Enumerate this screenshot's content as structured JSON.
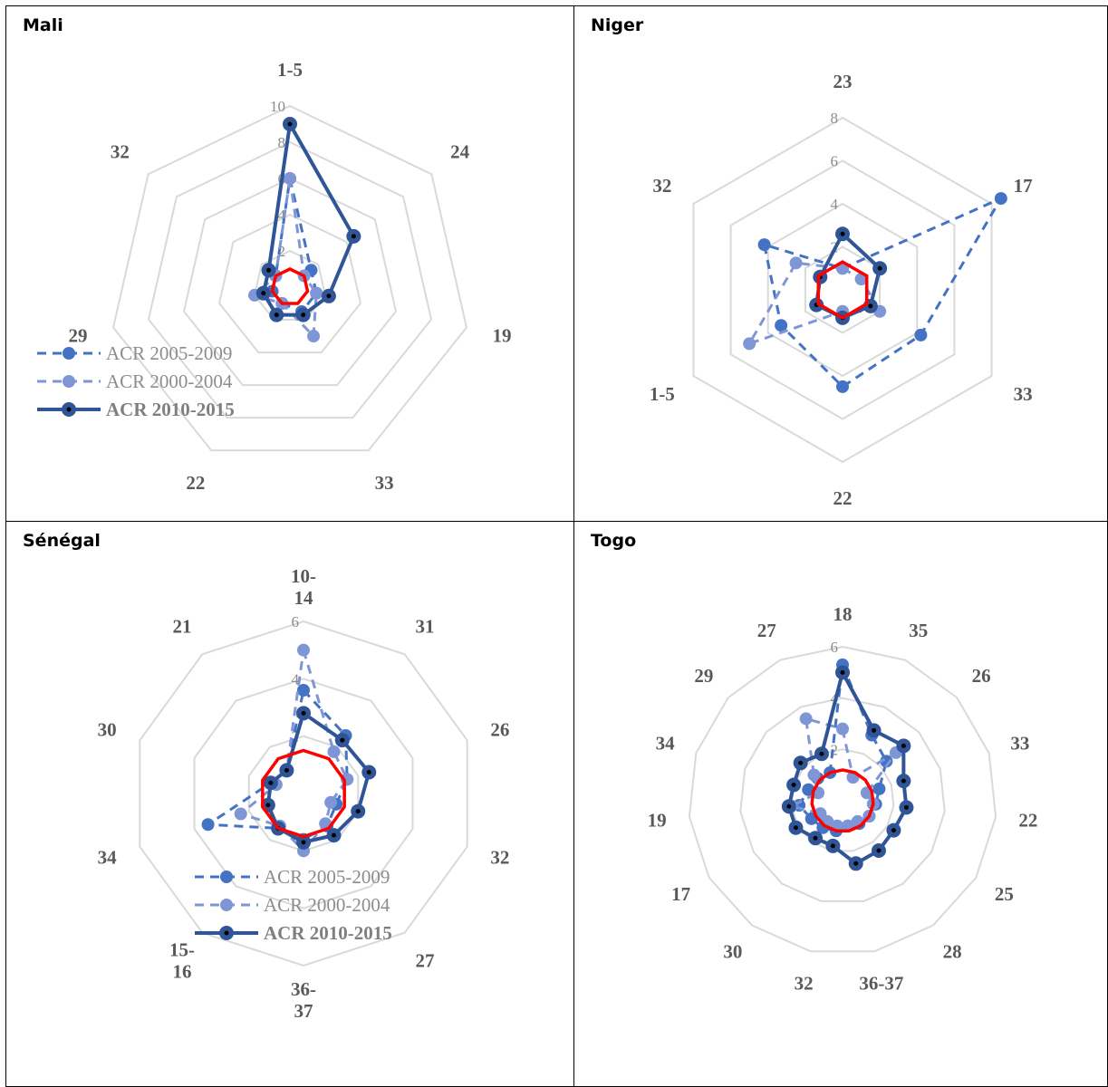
{
  "colors": {
    "series_2005_2009": "#4472C4",
    "series_2000_2004": "#7F96D6",
    "series_2010_2015": "#2F5597",
    "reference": "#FF0000",
    "grid": "#D9D9D9"
  },
  "legend": {
    "series": [
      {
        "name": "ACR 2005-2009",
        "style": "dashed"
      },
      {
        "name": "ACR 2000-2004",
        "style": "dashed"
      },
      {
        "name": "ACR 2010-2015",
        "style": "solid"
      }
    ]
  },
  "chart_data": [
    {
      "type": "radar",
      "title": "Mali",
      "axes": [
        "1-5",
        "24",
        "19",
        "33",
        "22",
        "29",
        "32"
      ],
      "ticks": [
        "2",
        "4",
        "6",
        "8",
        "10"
      ],
      "rmax": 10,
      "reference_value": 1,
      "legend": "left",
      "series": [
        {
          "name": "ACR 2005-2009",
          "values": [
            6,
            1.5,
            1.5,
            1.5,
            1,
            1,
            1
          ]
        },
        {
          "name": "ACR 2000-2004",
          "values": [
            6,
            1,
            1.5,
            3,
            1,
            2,
            1
          ]
        },
        {
          "name": "ACR 2010-2015",
          "values": [
            9,
            4.5,
            2.2,
            1.7,
            1.7,
            1.5,
            1.5
          ]
        }
      ]
    },
    {
      "type": "radar",
      "title": "Niger",
      "axes": [
        "23",
        "17",
        "33",
        "22",
        "1-5",
        "32"
      ],
      "ticks": [
        "2",
        "4",
        "6",
        "8"
      ],
      "rmax": 8,
      "reference_value": 1.3,
      "legend": "none",
      "series": [
        {
          "name": "ACR 2005-2009",
          "values": [
            1,
            8.5,
            4.2,
            4.5,
            3.3,
            4.2
          ]
        },
        {
          "name": "ACR 2000-2004",
          "values": [
            1,
            1,
            2,
            1,
            5,
            2.5
          ]
        },
        {
          "name": "ACR 2010-2015",
          "values": [
            2.6,
            2,
            1.5,
            1.3,
            1.4,
            1.2
          ]
        }
      ]
    },
    {
      "type": "radar",
      "title": "Sénégal",
      "axes": [
        "10-\n14",
        "31",
        "26",
        "32",
        "27",
        "36-\n37",
        "15-\n16",
        "34",
        "30",
        "21"
      ],
      "ticks": [
        "2",
        "4",
        "6"
      ],
      "rmax": 6,
      "reference_value": 1.5,
      "legend": "bottom",
      "series": [
        {
          "name": "ACR 2005-2009",
          "values": [
            3.6,
            2.5,
            1.6,
            1.2,
            1.4,
            1.6,
            1.5,
            3.5,
            1.2,
            1
          ]
        },
        {
          "name": "ACR 2000-2004",
          "values": [
            5,
            1.8,
            1.6,
            1,
            1.3,
            2,
            1.4,
            2.3,
            1,
            1
          ]
        },
        {
          "name": "ACR 2010-2015",
          "values": [
            2.8,
            2.3,
            2.4,
            2,
            1.8,
            1.7,
            1.5,
            1.3,
            1.2,
            1
          ]
        }
      ]
    },
    {
      "type": "radar",
      "title": "Togo",
      "axes": [
        "18",
        "35",
        "26",
        "33",
        "22",
        "25",
        "28",
        "36-37",
        "32",
        "30",
        "17",
        "19",
        "34",
        "29",
        "27"
      ],
      "ticks": [
        "2",
        "4",
        "6"
      ],
      "rmax": 6,
      "reference_value": 1.2,
      "legend": "none",
      "series": [
        {
          "name": "ACR 2005-2009",
          "values": [
            5.3,
            2.8,
            2.3,
            1.5,
            1.3,
            1.2,
            1.1,
            1,
            1.2,
            1.3,
            1.4,
            1.7,
            1.4,
            1.3,
            1.2
          ]
        },
        {
          "name": "ACR 2000-2004",
          "values": [
            2.8,
            1,
            2.8,
            1,
            1.2,
            1.2,
            1,
            1,
            1,
            1,
            1,
            2,
            1,
            1.5,
            3.5
          ]
        },
        {
          "name": "ACR 2010-2015",
          "values": [
            5,
            3,
            3.2,
            2.5,
            2.5,
            2.3,
            2.4,
            2.5,
            1.8,
            1.8,
            2.1,
            2.1,
            2,
            2.2,
            2
          ]
        }
      ]
    }
  ]
}
